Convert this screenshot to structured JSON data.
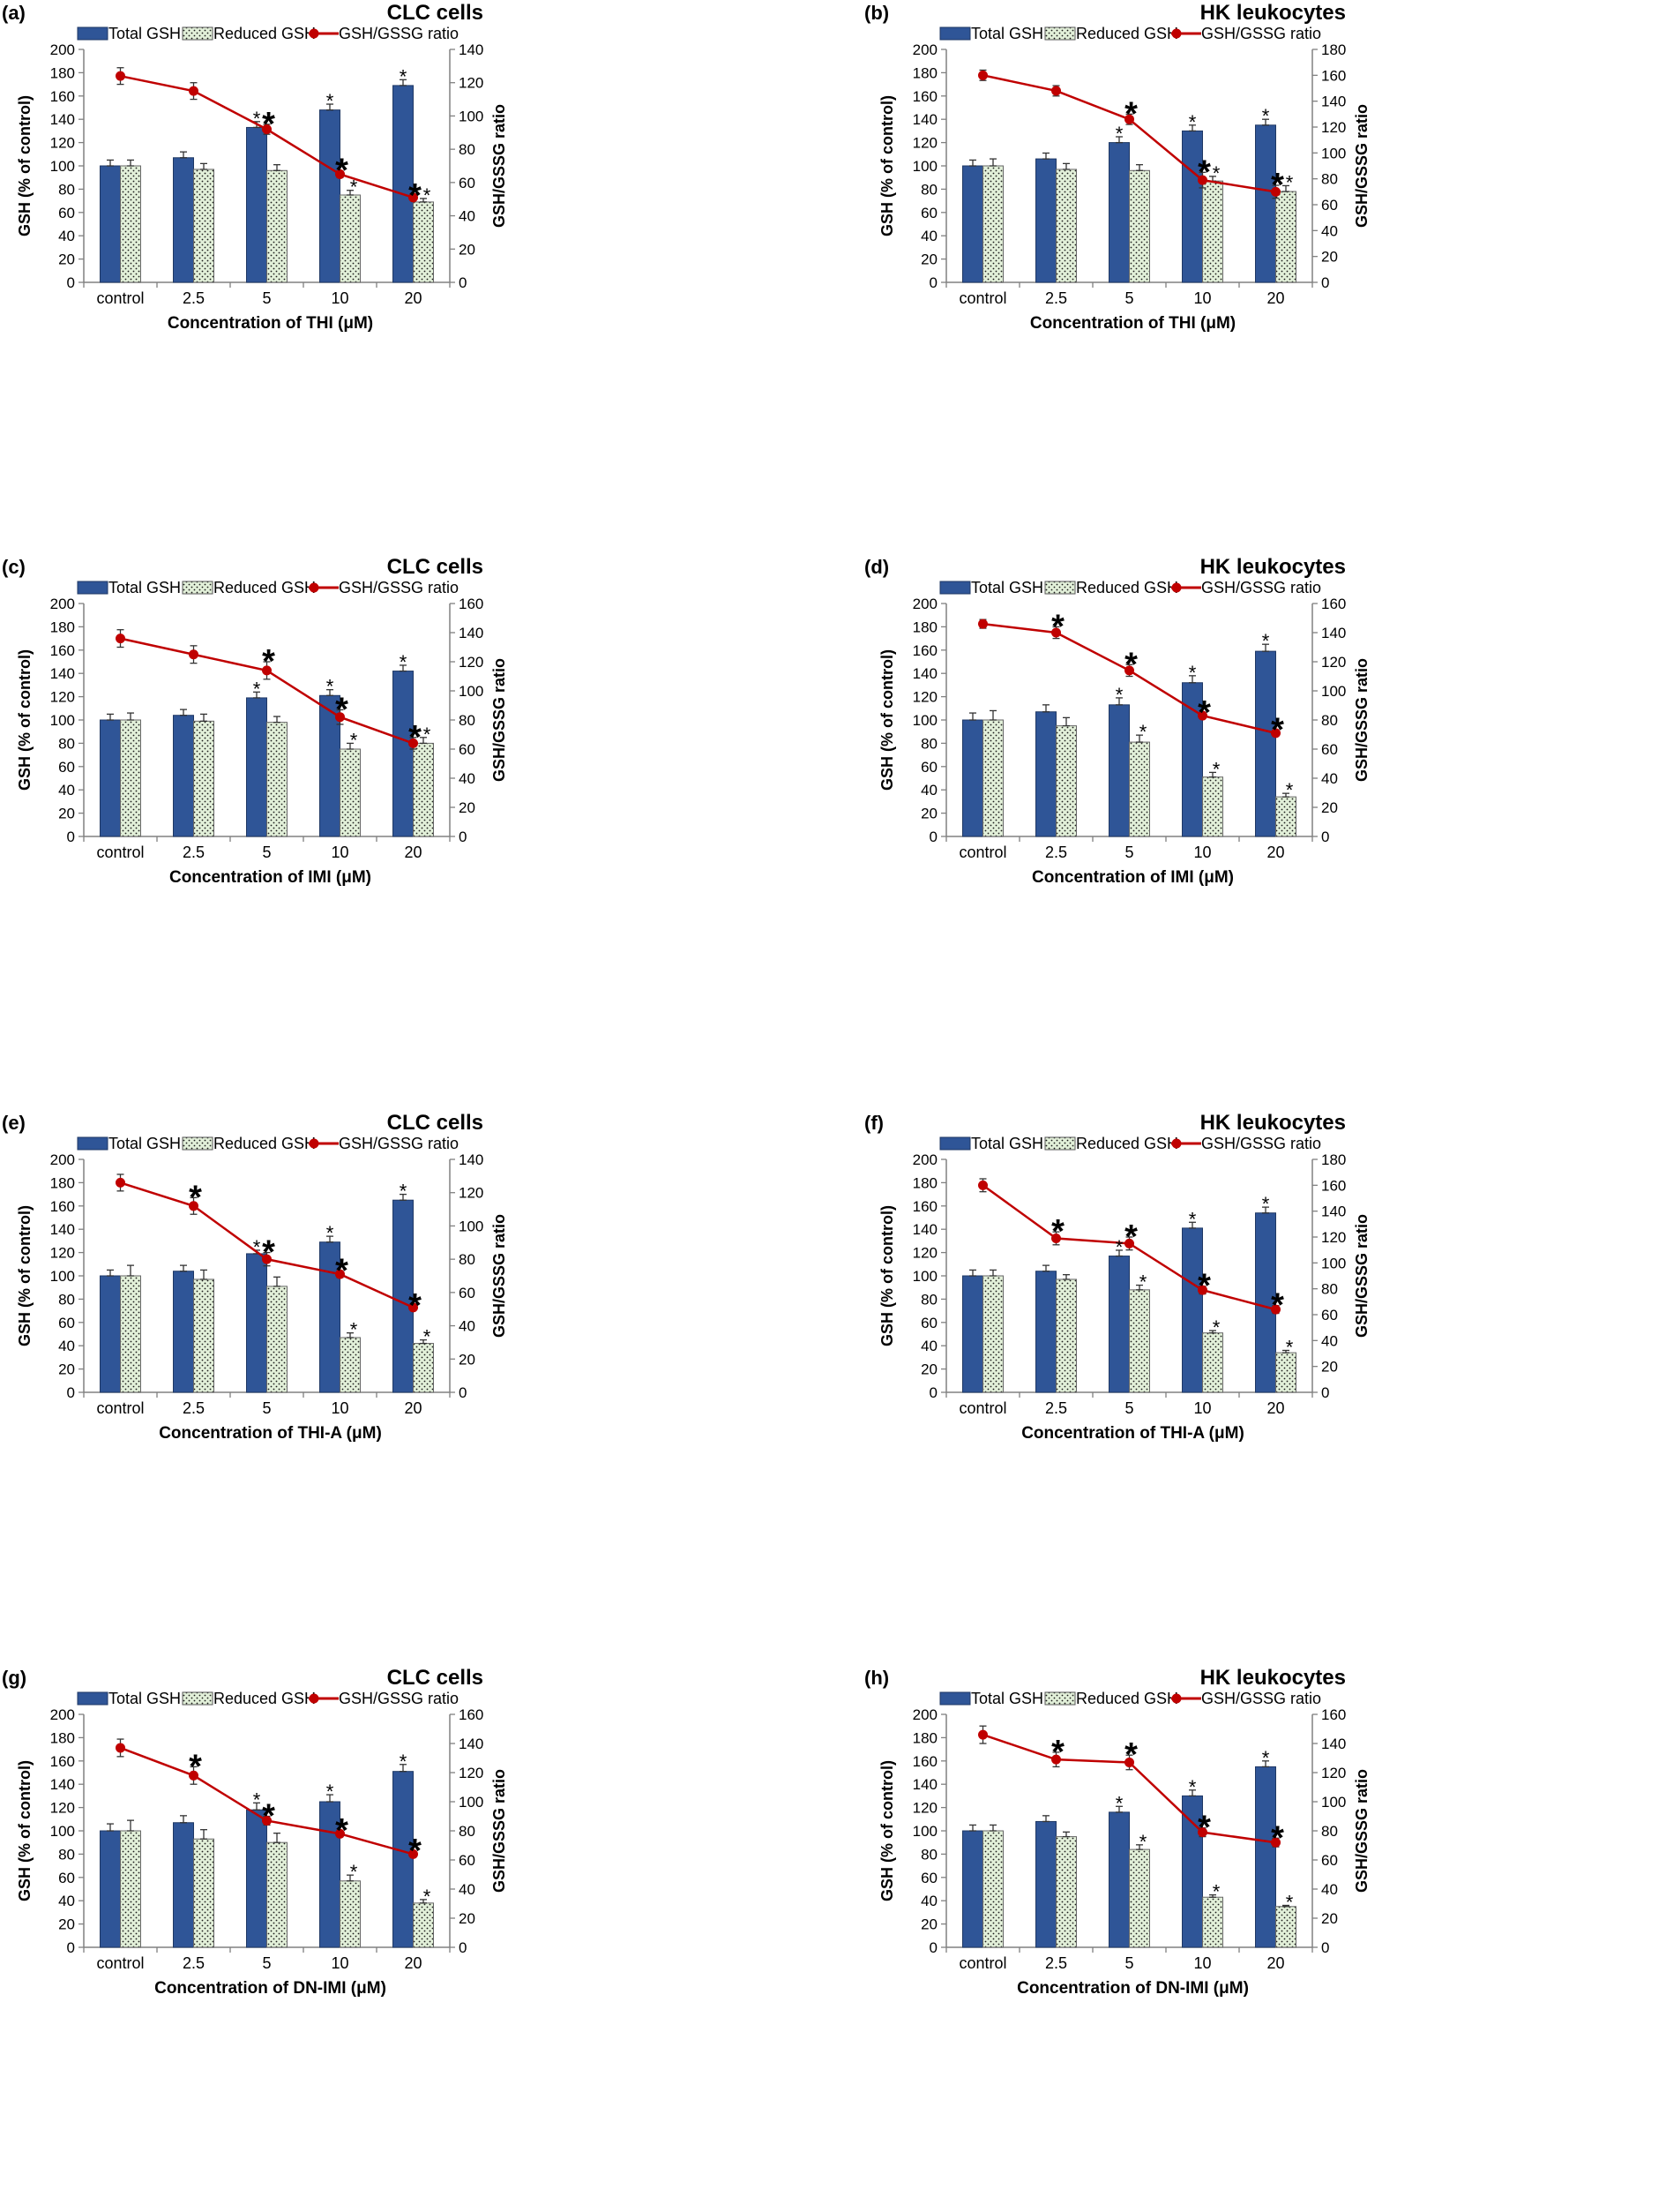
{
  "figure": {
    "legend": {
      "total": "Total GSH",
      "reduced": "Reduced GSH",
      "ratio": "GSH/GSSG ratio"
    },
    "colors": {
      "total": "#2f5597",
      "total_edge": "#1f3864",
      "reduced": "#e2f0d9",
      "reduced_dot": "#1a1a1a",
      "ratio": "#c00000",
      "axis": "#808080",
      "text": "#000000"
    }
  },
  "chart_data": [
    {
      "panel": "(a)",
      "title": "CLC cells",
      "type": "bar+line",
      "xlabel": "Concentration of THI (μM)",
      "ylabel": "GSH (% of control)",
      "y2label": "GSH/GSSG ratio",
      "ylim": [
        0,
        200
      ],
      "yticks": [
        0,
        20,
        40,
        60,
        80,
        100,
        120,
        140,
        160,
        180,
        200
      ],
      "y2lim": [
        0,
        140
      ],
      "y2ticks": [
        0,
        20,
        40,
        60,
        80,
        100,
        120,
        140
      ],
      "categories": [
        "control",
        "2.5",
        "5",
        "10",
        "20"
      ],
      "series": [
        {
          "name": "Total GSH",
          "axis": "left",
          "values": [
            100,
            107,
            133,
            148,
            169
          ],
          "errors": [
            5,
            5,
            5,
            5,
            5
          ]
        },
        {
          "name": "Reduced GSH",
          "axis": "left",
          "values": [
            100,
            97,
            96,
            75,
            69
          ],
          "errors": [
            5,
            5,
            5,
            4,
            3
          ]
        },
        {
          "name": "GSH/GSSG ratio",
          "axis": "right",
          "values": [
            124,
            115,
            92,
            65,
            51
          ],
          "errors": [
            5,
            5,
            3,
            2,
            1
          ]
        }
      ],
      "annotations": {
        "total": [
          "",
          "",
          "*",
          "*",
          "*"
        ],
        "reduced": [
          "",
          "",
          "",
          "*",
          "*"
        ],
        "ratio": [
          "",
          "",
          "*",
          "*",
          "*"
        ]
      }
    },
    {
      "panel": "(b)",
      "title": "HK leukocytes",
      "type": "bar+line",
      "xlabel": "Concentration of THI (μM)",
      "ylabel": "GSH (% of control)",
      "y2label": "GSH/GSSG ratio",
      "ylim": [
        0,
        200
      ],
      "yticks": [
        0,
        20,
        40,
        60,
        80,
        100,
        120,
        140,
        160,
        180,
        200
      ],
      "y2lim": [
        0,
        180
      ],
      "y2ticks": [
        0,
        20,
        40,
        60,
        80,
        100,
        120,
        140,
        160,
        180
      ],
      "categories": [
        "control",
        "2.5",
        "5",
        "10",
        "20"
      ],
      "series": [
        {
          "name": "Total GSH",
          "axis": "left",
          "values": [
            100,
            106,
            120,
            130,
            135
          ],
          "errors": [
            5,
            5,
            5,
            5,
            5
          ]
        },
        {
          "name": "Reduced GSH",
          "axis": "left",
          "values": [
            100,
            97,
            96,
            87,
            78
          ],
          "errors": [
            6,
            5,
            5,
            4,
            5
          ]
        },
        {
          "name": "GSH/GSSG ratio",
          "axis": "right",
          "values": [
            160,
            148,
            126,
            79,
            70
          ],
          "errors": [
            4,
            4,
            4,
            6,
            5
          ]
        }
      ],
      "annotations": {
        "total": [
          "",
          "",
          "*",
          "*",
          "*"
        ],
        "reduced": [
          "",
          "",
          "",
          "*",
          "*"
        ],
        "ratio": [
          "",
          "",
          "*",
          "*",
          "*"
        ]
      }
    },
    {
      "panel": "(c)",
      "title": "CLC cells",
      "type": "bar+line",
      "xlabel": "Concentration of IMI (μM)",
      "ylabel": "GSH (% of control)",
      "y2label": "GSH/GSSG ratio",
      "ylim": [
        0,
        200
      ],
      "yticks": [
        0,
        20,
        40,
        60,
        80,
        100,
        120,
        140,
        160,
        180,
        200
      ],
      "y2lim": [
        0,
        160
      ],
      "y2ticks": [
        0,
        20,
        40,
        60,
        80,
        100,
        120,
        140,
        160
      ],
      "categories": [
        "control",
        "2.5",
        "5",
        "10",
        "20"
      ],
      "series": [
        {
          "name": "Total GSH",
          "axis": "left",
          "values": [
            100,
            104,
            119,
            121,
            142
          ],
          "errors": [
            5,
            5,
            5,
            5,
            5
          ]
        },
        {
          "name": "Reduced GSH",
          "axis": "left",
          "values": [
            100,
            99,
            98,
            75,
            80
          ],
          "errors": [
            6,
            6,
            5,
            5,
            5
          ]
        },
        {
          "name": "GSH/GSSG ratio",
          "axis": "right",
          "values": [
            136,
            125,
            114,
            82,
            64
          ],
          "errors": [
            6,
            6,
            6,
            5,
            4
          ]
        }
      ],
      "annotations": {
        "total": [
          "",
          "",
          "*",
          "*",
          "*"
        ],
        "reduced": [
          "",
          "",
          "",
          "*",
          "*"
        ],
        "ratio": [
          "",
          "",
          "*",
          "*",
          "*"
        ]
      }
    },
    {
      "panel": "(d)",
      "title": "HK leukocytes",
      "type": "bar+line",
      "xlabel": "Concentration of IMI (μM)",
      "ylabel": "GSH (% of control)",
      "y2label": "GSH/GSSG ratio",
      "ylim": [
        0,
        200
      ],
      "yticks": [
        0,
        20,
        40,
        60,
        80,
        100,
        120,
        140,
        160,
        180,
        200
      ],
      "y2lim": [
        0,
        160
      ],
      "y2ticks": [
        0,
        20,
        40,
        60,
        80,
        100,
        120,
        140,
        160
      ],
      "categories": [
        "control",
        "2.5",
        "5",
        "10",
        "20"
      ],
      "series": [
        {
          "name": "Total GSH",
          "axis": "left",
          "values": [
            100,
            107,
            113,
            132,
            159
          ],
          "errors": [
            6,
            6,
            6,
            6,
            6
          ]
        },
        {
          "name": "Reduced GSH",
          "axis": "left",
          "values": [
            100,
            95,
            81,
            51,
            34
          ],
          "errors": [
            8,
            7,
            6,
            4,
            3
          ]
        },
        {
          "name": "GSH/GSSG ratio",
          "axis": "right",
          "values": [
            146,
            140,
            114,
            83,
            71
          ],
          "errors": [
            3,
            4,
            4,
            2,
            2
          ]
        }
      ],
      "annotations": {
        "total": [
          "",
          "",
          "*",
          "*",
          "*"
        ],
        "reduced": [
          "",
          "",
          "*",
          "*",
          "*"
        ],
        "ratio": [
          "",
          "*",
          "*",
          "*",
          "*"
        ]
      }
    },
    {
      "panel": "(e)",
      "title": "CLC cells",
      "type": "bar+line",
      "xlabel": "Concentration of THI-A (μM)",
      "ylabel": "GSH (% of control)",
      "y2label": "GSH/GSSG ratio",
      "ylim": [
        0,
        200
      ],
      "yticks": [
        0,
        20,
        40,
        60,
        80,
        100,
        120,
        140,
        160,
        180,
        200
      ],
      "y2lim": [
        0,
        140
      ],
      "y2ticks": [
        0,
        20,
        40,
        60,
        80,
        100,
        120,
        140
      ],
      "categories": [
        "control",
        "2.5",
        "5",
        "10",
        "20"
      ],
      "series": [
        {
          "name": "Total GSH",
          "axis": "left",
          "values": [
            100,
            104,
            119,
            129,
            165
          ],
          "errors": [
            5,
            5,
            3,
            5,
            5
          ]
        },
        {
          "name": "Reduced GSH",
          "axis": "left",
          "values": [
            100,
            97,
            91,
            47,
            42
          ],
          "errors": [
            9,
            8,
            8,
            4,
            3
          ]
        },
        {
          "name": "GSH/GSSG ratio",
          "axis": "right",
          "values": [
            126,
            112,
            80,
            71,
            51
          ],
          "errors": [
            5,
            5,
            4,
            2,
            1
          ]
        }
      ],
      "annotations": {
        "total": [
          "",
          "",
          "*",
          "*",
          "*"
        ],
        "reduced": [
          "",
          "",
          "",
          "*",
          "*"
        ],
        "ratio": [
          "",
          "*",
          "*",
          "*",
          "*"
        ]
      }
    },
    {
      "panel": "(f)",
      "title": "HK leukocytes",
      "type": "bar+line",
      "xlabel": "Concentration of THI-A (μM)",
      "ylabel": "GSH (% of control)",
      "y2label": "GSH/GSSG ratio",
      "ylim": [
        0,
        200
      ],
      "yticks": [
        0,
        20,
        40,
        60,
        80,
        100,
        120,
        140,
        160,
        180,
        200
      ],
      "y2lim": [
        0,
        180
      ],
      "y2ticks": [
        0,
        20,
        40,
        60,
        80,
        100,
        120,
        140,
        160,
        180
      ],
      "categories": [
        "control",
        "2.5",
        "5",
        "10",
        "20"
      ],
      "series": [
        {
          "name": "Total GSH",
          "axis": "left",
          "values": [
            100,
            104,
            117,
            141,
            154
          ],
          "errors": [
            5,
            5,
            5,
            5,
            5
          ]
        },
        {
          "name": "Reduced GSH",
          "axis": "left",
          "values": [
            100,
            97,
            88,
            51,
            34
          ],
          "errors": [
            5,
            4,
            4,
            2,
            2
          ]
        },
        {
          "name": "GSH/GSSG ratio",
          "axis": "right",
          "values": [
            160,
            119,
            115,
            79,
            64
          ],
          "errors": [
            5,
            5,
            5,
            3,
            3
          ]
        }
      ],
      "annotations": {
        "total": [
          "",
          "",
          "*",
          "*",
          "*"
        ],
        "reduced": [
          "",
          "",
          "*",
          "*",
          "*"
        ],
        "ratio": [
          "",
          "*",
          "*",
          "*",
          "*"
        ]
      }
    },
    {
      "panel": "(g)",
      "title": "CLC cells",
      "type": "bar+line",
      "xlabel": "Concentration of DN-IMI (μM)",
      "ylabel": "GSH (% of control)",
      "y2label": "GSH/GSSG ratio",
      "ylim": [
        0,
        200
      ],
      "yticks": [
        0,
        20,
        40,
        60,
        80,
        100,
        120,
        140,
        160,
        180,
        200
      ],
      "y2lim": [
        0,
        160
      ],
      "y2ticks": [
        0,
        20,
        40,
        60,
        80,
        100,
        120,
        140,
        160
      ],
      "categories": [
        "control",
        "2.5",
        "5",
        "10",
        "20"
      ],
      "series": [
        {
          "name": "Total GSH",
          "axis": "left",
          "values": [
            100,
            107,
            118,
            125,
            151
          ],
          "errors": [
            6,
            6,
            6,
            6,
            6
          ]
        },
        {
          "name": "Reduced GSH",
          "axis": "left",
          "values": [
            100,
            93,
            90,
            57,
            38
          ],
          "errors": [
            9,
            8,
            8,
            5,
            3
          ]
        },
        {
          "name": "GSH/GSSG ratio",
          "axis": "right",
          "values": [
            137,
            118,
            87,
            78,
            64
          ],
          "errors": [
            6,
            6,
            3,
            2,
            2
          ]
        }
      ],
      "annotations": {
        "total": [
          "",
          "",
          "*",
          "*",
          "*"
        ],
        "reduced": [
          "",
          "",
          "",
          "*",
          "*"
        ],
        "ratio": [
          "",
          "*",
          "*",
          "*",
          "*"
        ]
      }
    },
    {
      "panel": "(h)",
      "title": "HK leukocytes",
      "type": "bar+line",
      "xlabel": "Concentration of DN-IMI (μM)",
      "ylabel": "GSH (% of control)",
      "y2label": "GSH/GSSG ratio",
      "ylim": [
        0,
        200
      ],
      "yticks": [
        0,
        20,
        40,
        60,
        80,
        100,
        120,
        140,
        160,
        180,
        200
      ],
      "y2lim": [
        0,
        160
      ],
      "y2ticks": [
        0,
        20,
        40,
        60,
        80,
        100,
        120,
        140,
        160
      ],
      "categories": [
        "control",
        "2.5",
        "5",
        "10",
        "20"
      ],
      "series": [
        {
          "name": "Total GSH",
          "axis": "left",
          "values": [
            100,
            108,
            116,
            130,
            155
          ],
          "errors": [
            5,
            5,
            5,
            5,
            5
          ]
        },
        {
          "name": "Reduced GSH",
          "axis": "left",
          "values": [
            100,
            95,
            84,
            43,
            35
          ],
          "errors": [
            5,
            4,
            4,
            2,
            1
          ]
        },
        {
          "name": "GSH/GSSG ratio",
          "axis": "right",
          "values": [
            146,
            129,
            127,
            79,
            72
          ],
          "errors": [
            6,
            5,
            5,
            3,
            3
          ]
        }
      ],
      "annotations": {
        "total": [
          "",
          "",
          "*",
          "*",
          "*"
        ],
        "reduced": [
          "",
          "",
          "*",
          "*",
          "*"
        ],
        "ratio": [
          "",
          "*",
          "*",
          "*",
          "*"
        ]
      }
    }
  ]
}
